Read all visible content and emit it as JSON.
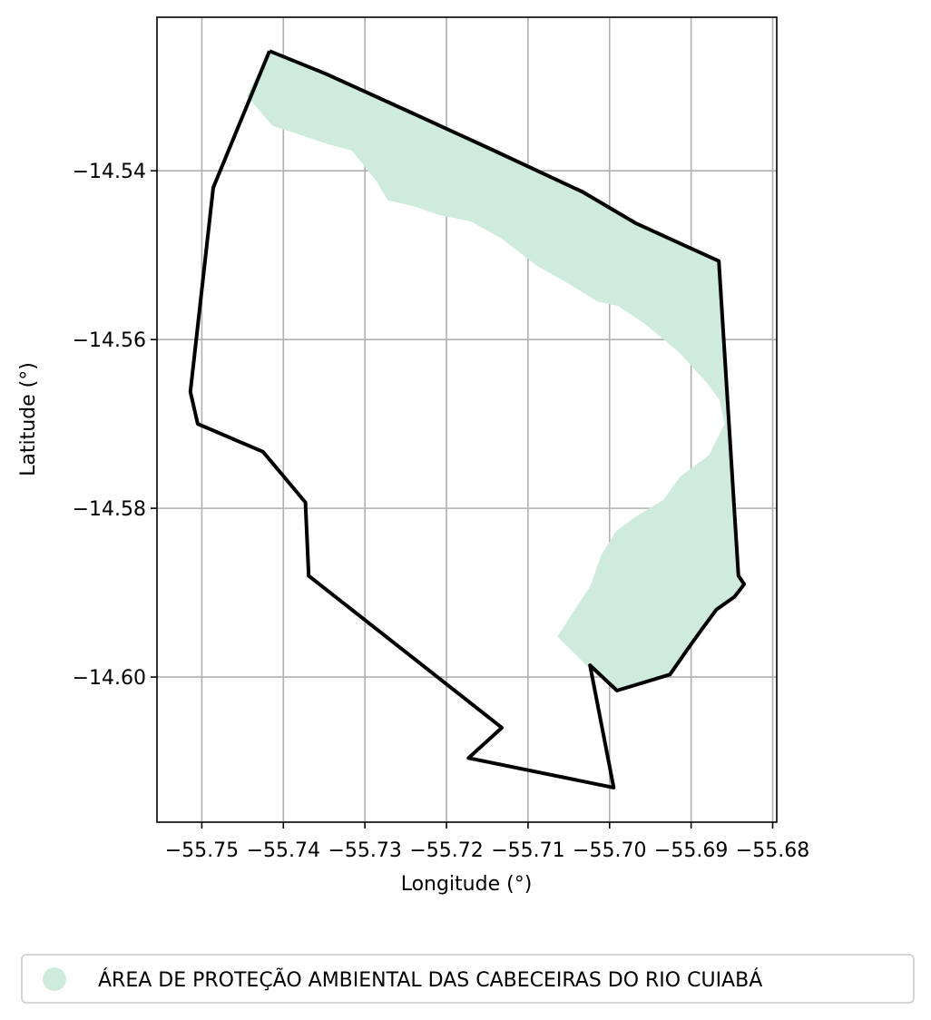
{
  "chart_data": {
    "type": "map",
    "xlabel": "Longitude (°)",
    "ylabel": "Latitude (°)",
    "xlim": [
      -55.7555,
      -55.6795
    ],
    "ylim": [
      -14.6172,
      -14.5218
    ],
    "x_ticks": [
      -55.75,
      -55.74,
      -55.73,
      -55.72,
      -55.71,
      -55.7,
      -55.69,
      -55.68
    ],
    "x_tick_labels": [
      "−55.75",
      "−55.74",
      "−55.73",
      "−55.72",
      "−55.71",
      "−55.70",
      "−55.69",
      "−55.68"
    ],
    "y_ticks": [
      -14.54,
      -14.56,
      -14.58,
      -14.6
    ],
    "y_tick_labels": [
      "−14.54",
      "−14.56",
      "−14.58",
      "−14.60"
    ],
    "grid": true,
    "legend_position": "bottom",
    "boundary": {
      "color": "#000000",
      "coordinates": [
        [
          -55.7417,
          -14.5258
        ],
        [
          -55.7348,
          -14.5285
        ],
        [
          -55.7241,
          -14.5332
        ],
        [
          -55.7144,
          -14.5375
        ],
        [
          -55.7033,
          -14.5425
        ],
        [
          -55.6968,
          -14.5462
        ],
        [
          -55.6866,
          -14.5507
        ],
        [
          -55.6842,
          -14.588
        ],
        [
          -55.6835,
          -14.589
        ],
        [
          -55.6847,
          -14.5905
        ],
        [
          -55.6869,
          -14.592
        ],
        [
          -55.6888,
          -14.5945
        ],
        [
          -55.6905,
          -14.5968
        ],
        [
          -55.6926,
          -14.5997
        ],
        [
          -55.6991,
          -14.6016
        ],
        [
          -55.7024,
          -14.5986
        ],
        [
          -55.6995,
          -14.6131
        ],
        [
          -55.7173,
          -14.6096
        ],
        [
          -55.7132,
          -14.606
        ],
        [
          -55.7369,
          -14.588
        ],
        [
          -55.7373,
          -14.5793
        ],
        [
          -55.7425,
          -14.5733
        ],
        [
          -55.7505,
          -14.57
        ],
        [
          -55.7514,
          -14.5662
        ],
        [
          -55.7486,
          -14.542
        ],
        [
          -55.7417,
          -14.5258
        ]
      ]
    },
    "protected_area": {
      "name": "ÁREA DE PROTEÇÃO AMBIENTAL DAS CABECEIRAS DO RIO CUIABÁ",
      "color": "#cfebdd",
      "coordinates": [
        [
          -55.7417,
          -14.5258
        ],
        [
          -55.7348,
          -14.5285
        ],
        [
          -55.7241,
          -14.5332
        ],
        [
          -55.7144,
          -14.5375
        ],
        [
          -55.7033,
          -14.5425
        ],
        [
          -55.6968,
          -14.5462
        ],
        [
          -55.6866,
          -14.5507
        ],
        [
          -55.6845,
          -14.5832
        ],
        [
          -55.6842,
          -14.588
        ],
        [
          -55.6835,
          -14.589
        ],
        [
          -55.6847,
          -14.5905
        ],
        [
          -55.6869,
          -14.592
        ],
        [
          -55.6888,
          -14.5945
        ],
        [
          -55.6905,
          -14.5968
        ],
        [
          -55.6926,
          -14.5997
        ],
        [
          -55.6991,
          -14.6016
        ],
        [
          -55.7019,
          -14.5995
        ],
        [
          -55.7064,
          -14.5952
        ],
        [
          -55.7044,
          -14.5922
        ],
        [
          -55.7024,
          -14.5893
        ],
        [
          -55.701,
          -14.5855
        ],
        [
          -55.6992,
          -14.5827
        ],
        [
          -55.6968,
          -14.581
        ],
        [
          -55.6934,
          -14.579
        ],
        [
          -55.6913,
          -14.5762
        ],
        [
          -55.6878,
          -14.5737
        ],
        [
          -55.6859,
          -14.57
        ],
        [
          -55.6865,
          -14.5672
        ],
        [
          -55.688,
          -14.5652
        ],
        [
          -55.6915,
          -14.5615
        ],
        [
          -55.6956,
          -14.5582
        ],
        [
          -55.699,
          -14.556
        ],
        [
          -55.7015,
          -14.5555
        ],
        [
          -55.7048,
          -14.5535
        ],
        [
          -55.709,
          -14.5512
        ],
        [
          -55.7133,
          -14.548
        ],
        [
          -55.717,
          -14.546
        ],
        [
          -55.721,
          -14.5452
        ],
        [
          -55.724,
          -14.5442
        ],
        [
          -55.7272,
          -14.5435
        ],
        [
          -55.7286,
          -14.5412
        ],
        [
          -55.7316,
          -14.5376
        ],
        [
          -55.7347,
          -14.5368
        ],
        [
          -55.7387,
          -14.5355
        ],
        [
          -55.7413,
          -14.5347
        ],
        [
          -55.7445,
          -14.5311
        ],
        [
          -55.7417,
          -14.5258
        ]
      ]
    }
  },
  "legend": {
    "items": [
      {
        "label": "ÁREA DE PROTEÇÃO AMBIENTAL DAS CABECEIRAS DO RIO CUIABÁ",
        "color": "#cfebdd"
      }
    ]
  }
}
